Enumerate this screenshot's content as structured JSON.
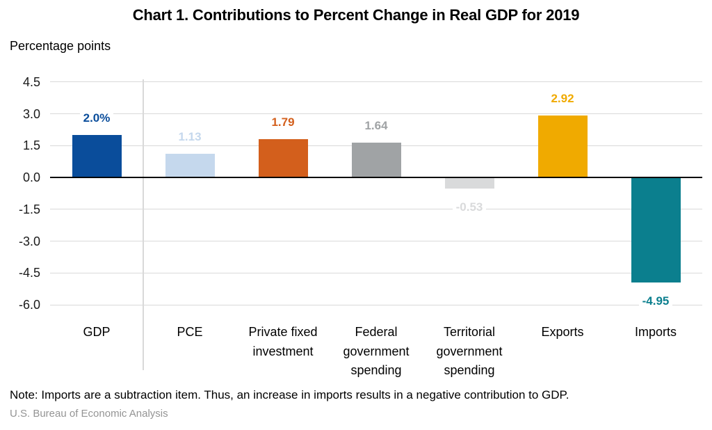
{
  "chart_data": {
    "type": "bar",
    "title": "Chart 1. Contributions to Percent Change in Real GDP for 2019",
    "ylabel": "Percentage points",
    "xlabel": "",
    "categories": [
      "GDP",
      "PCE",
      "Private fixed investment",
      "Federal government spending",
      "Territorial government spending",
      "Exports",
      "Imports"
    ],
    "values": [
      2.0,
      1.13,
      1.79,
      1.64,
      -0.53,
      2.92,
      -4.95
    ],
    "value_labels": [
      "2.0%",
      "1.13",
      "1.79",
      "1.64",
      "-0.53",
      "2.92",
      "-4.95"
    ],
    "bar_colors": [
      "#0a4d9b",
      "#c5d8ed",
      "#d35f1c",
      "#a0a3a5",
      "#d9dadb",
      "#f0aa00",
      "#0b7f8e"
    ],
    "yticks": [
      4.5,
      3.0,
      1.5,
      0.0,
      -1.5,
      -3.0,
      -4.5,
      -6.0
    ],
    "ytick_labels": [
      "4.5",
      "3.0",
      "1.5",
      "0.0",
      "-1.5",
      "-3.0",
      "-4.5",
      "-6.0"
    ],
    "ylim": [
      -6.0,
      4.5
    ],
    "grid": true,
    "legend": "none",
    "gridline_color": "#d9d9d9",
    "zero_line_color": "#000000",
    "separator_after_first_category": true,
    "note": "Note: Imports are a subtraction item. Thus, an increase in imports results in a negative contribution to GDP.",
    "source": "U.S. Bureau of Economic Analysis"
  }
}
